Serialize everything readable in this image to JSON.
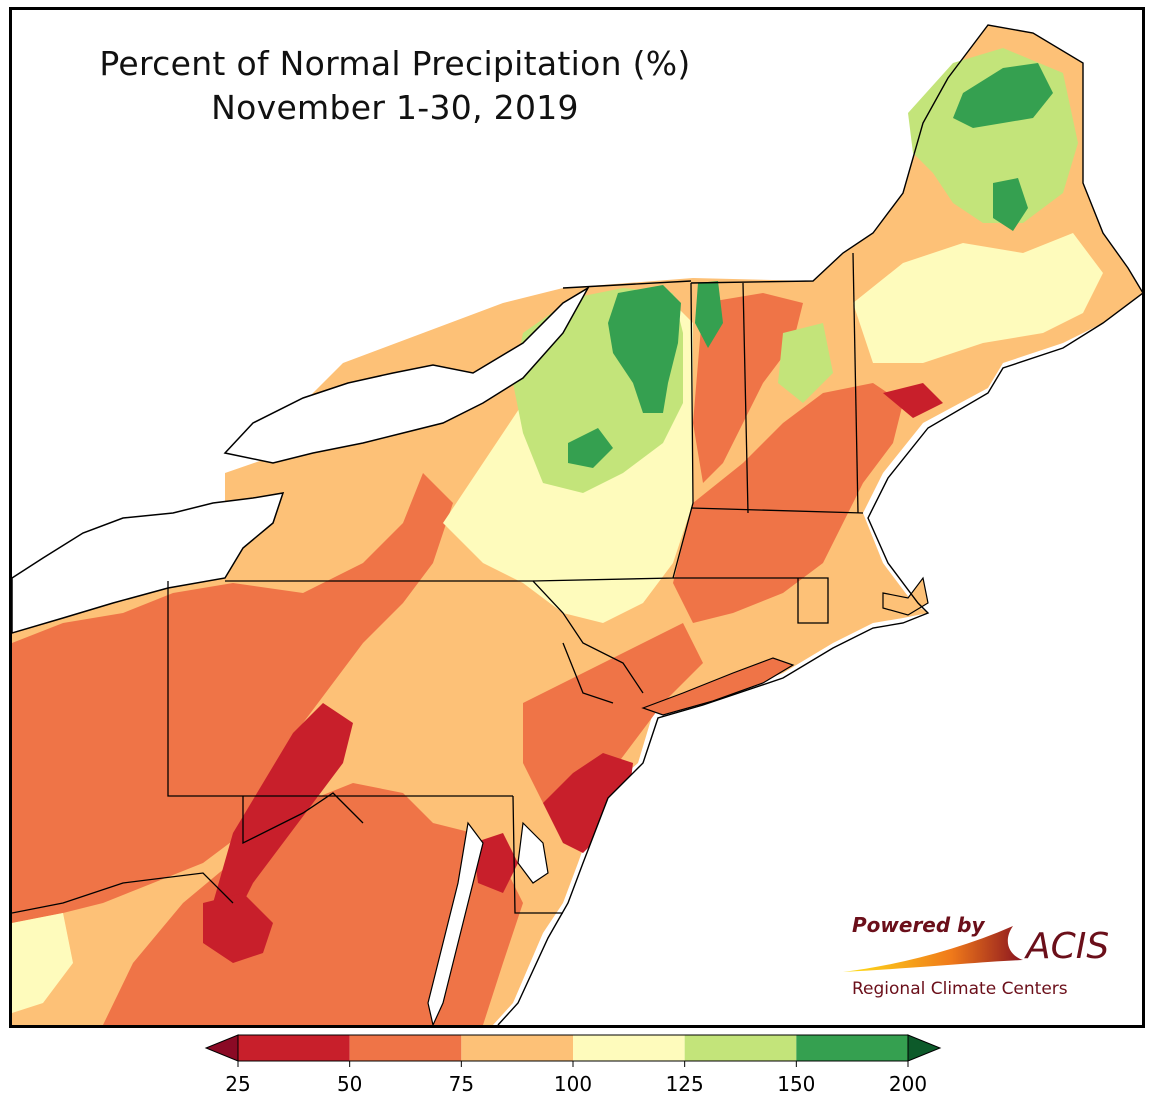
{
  "title": {
    "line1": "Percent of Normal Precipitation (%)",
    "line2": "November 1-30, 2019"
  },
  "logo": {
    "powered_by": "Powered by",
    "brand": "ACIS",
    "subtitle": "Regional Climate Centers",
    "brand_color": "#6b0f1a"
  },
  "legend": {
    "ticks": [
      "25",
      "50",
      "75",
      "100",
      "125",
      "150",
      "200"
    ],
    "bins": [
      {
        "range": "25-50",
        "color": "#c81f2b"
      },
      {
        "range": "50-75",
        "color": "#ef7447"
      },
      {
        "range": "75-100",
        "color": "#fdc177"
      },
      {
        "range": "100-125",
        "color": "#fefbbc"
      },
      {
        "range": "125-150",
        "color": "#c3e47a"
      },
      {
        "range": "150-200",
        "color": "#35a050"
      }
    ],
    "under_color": "#8b0a25",
    "over_color": "#0d5a2a"
  }
}
